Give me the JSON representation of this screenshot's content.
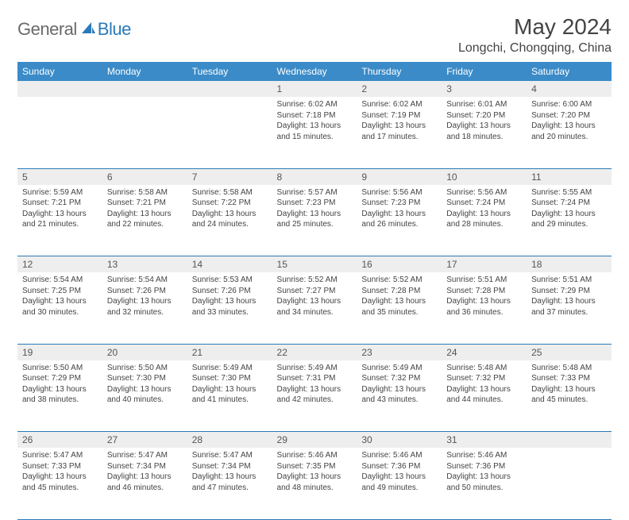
{
  "logo": {
    "text1": "General",
    "text2": "Blue",
    "icon_color": "#2a7ab8"
  },
  "title": "May 2024",
  "location": "Longchi, Chongqing, China",
  "colors": {
    "header_bg": "#3a8bc8",
    "header_text": "#ffffff",
    "daynum_bg": "#eeeeee",
    "border": "#2a7ab8",
    "body_text": "#444444"
  },
  "weekdays": [
    "Sunday",
    "Monday",
    "Tuesday",
    "Wednesday",
    "Thursday",
    "Friday",
    "Saturday"
  ],
  "weeks": [
    [
      null,
      null,
      null,
      {
        "n": "1",
        "sr": "Sunrise: 6:02 AM",
        "ss": "Sunset: 7:18 PM",
        "d1": "Daylight: 13 hours",
        "d2": "and 15 minutes."
      },
      {
        "n": "2",
        "sr": "Sunrise: 6:02 AM",
        "ss": "Sunset: 7:19 PM",
        "d1": "Daylight: 13 hours",
        "d2": "and 17 minutes."
      },
      {
        "n": "3",
        "sr": "Sunrise: 6:01 AM",
        "ss": "Sunset: 7:20 PM",
        "d1": "Daylight: 13 hours",
        "d2": "and 18 minutes."
      },
      {
        "n": "4",
        "sr": "Sunrise: 6:00 AM",
        "ss": "Sunset: 7:20 PM",
        "d1": "Daylight: 13 hours",
        "d2": "and 20 minutes."
      }
    ],
    [
      {
        "n": "5",
        "sr": "Sunrise: 5:59 AM",
        "ss": "Sunset: 7:21 PM",
        "d1": "Daylight: 13 hours",
        "d2": "and 21 minutes."
      },
      {
        "n": "6",
        "sr": "Sunrise: 5:58 AM",
        "ss": "Sunset: 7:21 PM",
        "d1": "Daylight: 13 hours",
        "d2": "and 22 minutes."
      },
      {
        "n": "7",
        "sr": "Sunrise: 5:58 AM",
        "ss": "Sunset: 7:22 PM",
        "d1": "Daylight: 13 hours",
        "d2": "and 24 minutes."
      },
      {
        "n": "8",
        "sr": "Sunrise: 5:57 AM",
        "ss": "Sunset: 7:23 PM",
        "d1": "Daylight: 13 hours",
        "d2": "and 25 minutes."
      },
      {
        "n": "9",
        "sr": "Sunrise: 5:56 AM",
        "ss": "Sunset: 7:23 PM",
        "d1": "Daylight: 13 hours",
        "d2": "and 26 minutes."
      },
      {
        "n": "10",
        "sr": "Sunrise: 5:56 AM",
        "ss": "Sunset: 7:24 PM",
        "d1": "Daylight: 13 hours",
        "d2": "and 28 minutes."
      },
      {
        "n": "11",
        "sr": "Sunrise: 5:55 AM",
        "ss": "Sunset: 7:24 PM",
        "d1": "Daylight: 13 hours",
        "d2": "and 29 minutes."
      }
    ],
    [
      {
        "n": "12",
        "sr": "Sunrise: 5:54 AM",
        "ss": "Sunset: 7:25 PM",
        "d1": "Daylight: 13 hours",
        "d2": "and 30 minutes."
      },
      {
        "n": "13",
        "sr": "Sunrise: 5:54 AM",
        "ss": "Sunset: 7:26 PM",
        "d1": "Daylight: 13 hours",
        "d2": "and 32 minutes."
      },
      {
        "n": "14",
        "sr": "Sunrise: 5:53 AM",
        "ss": "Sunset: 7:26 PM",
        "d1": "Daylight: 13 hours",
        "d2": "and 33 minutes."
      },
      {
        "n": "15",
        "sr": "Sunrise: 5:52 AM",
        "ss": "Sunset: 7:27 PM",
        "d1": "Daylight: 13 hours",
        "d2": "and 34 minutes."
      },
      {
        "n": "16",
        "sr": "Sunrise: 5:52 AM",
        "ss": "Sunset: 7:28 PM",
        "d1": "Daylight: 13 hours",
        "d2": "and 35 minutes."
      },
      {
        "n": "17",
        "sr": "Sunrise: 5:51 AM",
        "ss": "Sunset: 7:28 PM",
        "d1": "Daylight: 13 hours",
        "d2": "and 36 minutes."
      },
      {
        "n": "18",
        "sr": "Sunrise: 5:51 AM",
        "ss": "Sunset: 7:29 PM",
        "d1": "Daylight: 13 hours",
        "d2": "and 37 minutes."
      }
    ],
    [
      {
        "n": "19",
        "sr": "Sunrise: 5:50 AM",
        "ss": "Sunset: 7:29 PM",
        "d1": "Daylight: 13 hours",
        "d2": "and 38 minutes."
      },
      {
        "n": "20",
        "sr": "Sunrise: 5:50 AM",
        "ss": "Sunset: 7:30 PM",
        "d1": "Daylight: 13 hours",
        "d2": "and 40 minutes."
      },
      {
        "n": "21",
        "sr": "Sunrise: 5:49 AM",
        "ss": "Sunset: 7:30 PM",
        "d1": "Daylight: 13 hours",
        "d2": "and 41 minutes."
      },
      {
        "n": "22",
        "sr": "Sunrise: 5:49 AM",
        "ss": "Sunset: 7:31 PM",
        "d1": "Daylight: 13 hours",
        "d2": "and 42 minutes."
      },
      {
        "n": "23",
        "sr": "Sunrise: 5:49 AM",
        "ss": "Sunset: 7:32 PM",
        "d1": "Daylight: 13 hours",
        "d2": "and 43 minutes."
      },
      {
        "n": "24",
        "sr": "Sunrise: 5:48 AM",
        "ss": "Sunset: 7:32 PM",
        "d1": "Daylight: 13 hours",
        "d2": "and 44 minutes."
      },
      {
        "n": "25",
        "sr": "Sunrise: 5:48 AM",
        "ss": "Sunset: 7:33 PM",
        "d1": "Daylight: 13 hours",
        "d2": "and 45 minutes."
      }
    ],
    [
      {
        "n": "26",
        "sr": "Sunrise: 5:47 AM",
        "ss": "Sunset: 7:33 PM",
        "d1": "Daylight: 13 hours",
        "d2": "and 45 minutes."
      },
      {
        "n": "27",
        "sr": "Sunrise: 5:47 AM",
        "ss": "Sunset: 7:34 PM",
        "d1": "Daylight: 13 hours",
        "d2": "and 46 minutes."
      },
      {
        "n": "28",
        "sr": "Sunrise: 5:47 AM",
        "ss": "Sunset: 7:34 PM",
        "d1": "Daylight: 13 hours",
        "d2": "and 47 minutes."
      },
      {
        "n": "29",
        "sr": "Sunrise: 5:46 AM",
        "ss": "Sunset: 7:35 PM",
        "d1": "Daylight: 13 hours",
        "d2": "and 48 minutes."
      },
      {
        "n": "30",
        "sr": "Sunrise: 5:46 AM",
        "ss": "Sunset: 7:36 PM",
        "d1": "Daylight: 13 hours",
        "d2": "and 49 minutes."
      },
      {
        "n": "31",
        "sr": "Sunrise: 5:46 AM",
        "ss": "Sunset: 7:36 PM",
        "d1": "Daylight: 13 hours",
        "d2": "and 50 minutes."
      },
      null
    ]
  ]
}
